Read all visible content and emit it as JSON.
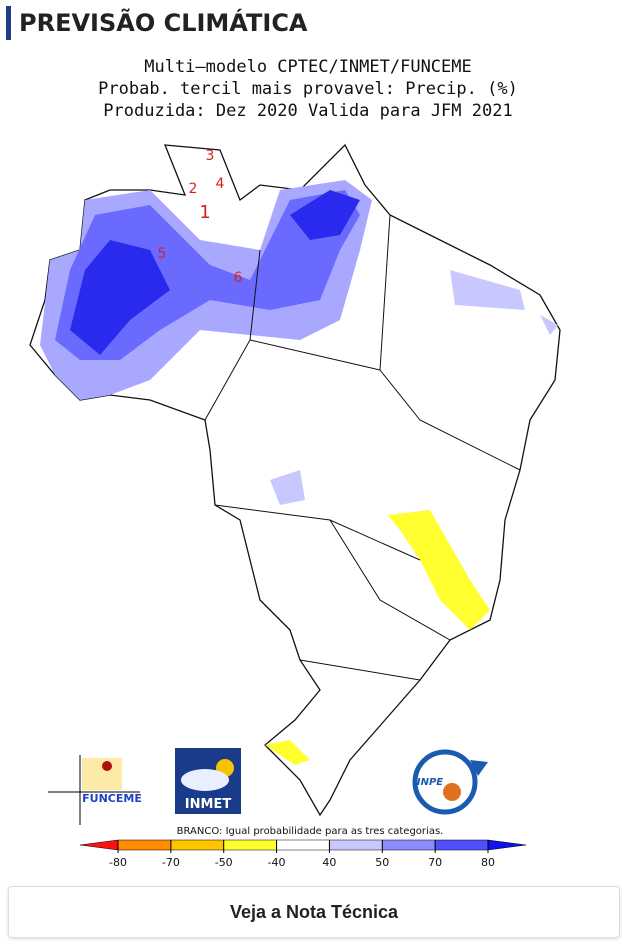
{
  "header": {
    "title": "PREVISÃO CLIMÁTICA"
  },
  "map": {
    "title_lines": [
      "Multi—modelo CPTEC/INMET/FUNCEME",
      "Probab. tercil mais provavel: Precip. (%)",
      "Produzida: Dez 2020  Valida para JFM 2021"
    ],
    "region_labels": [
      "3",
      "2",
      "4",
      "1",
      "5",
      "6"
    ],
    "logos": [
      "FUNCEME",
      "INMET",
      "INPE"
    ],
    "legend_note": "BRANCO: Igual probabilidade para as tres categorias.",
    "legend": {
      "ticks": [
        -80,
        -70,
        -50,
        -40,
        40,
        50,
        70,
        80
      ],
      "colors": [
        "#ff1010",
        "#ff8c00",
        "#ffc400",
        "#ffff30",
        "#ffffff",
        "#c8c8ff",
        "#8c8cff",
        "#5050ff",
        "#1010f0"
      ]
    }
  },
  "button": {
    "label": "Veja a Nota Técnica"
  }
}
